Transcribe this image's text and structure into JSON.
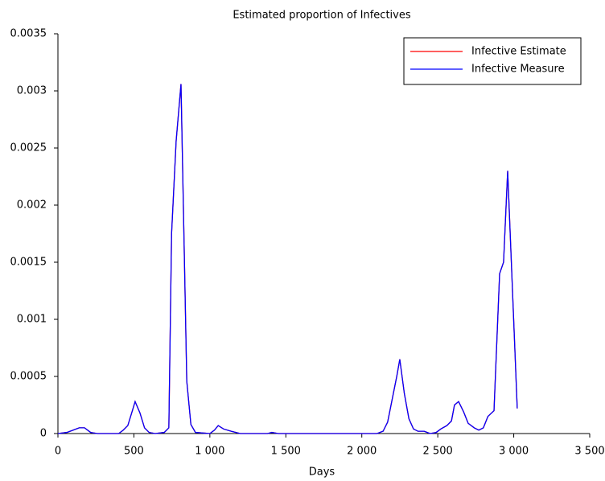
{
  "chart_data": {
    "type": "line",
    "title": "Estimated proportion of Infectives",
    "xlabel": "Days",
    "x": [
      0,
      60,
      100,
      140,
      175,
      215,
      260,
      400,
      430,
      460,
      490,
      508,
      540,
      570,
      600,
      640,
      700,
      730,
      748,
      778,
      810,
      848,
      875,
      905,
      1000,
      1030,
      1055,
      1090,
      1140,
      1200,
      1380,
      1408,
      1450,
      1600,
      1800,
      2000,
      2100,
      2140,
      2170,
      2200,
      2230,
      2250,
      2280,
      2310,
      2340,
      2370,
      2410,
      2450,
      2490,
      2520,
      2560,
      2590,
      2610,
      2637,
      2670,
      2700,
      2740,
      2770,
      2800,
      2830,
      2870,
      2907,
      2933,
      2960,
      3023
    ],
    "series": [
      {
        "name": "Infective Estimate",
        "color": "#ff0000",
        "values": [
          0,
          1e-05,
          3e-05,
          5e-05,
          5e-05,
          1e-05,
          0,
          0,
          3e-05,
          7e-05,
          0.0002,
          0.00028,
          0.00018,
          5e-05,
          1e-05,
          0,
          1e-05,
          5e-05,
          0.00175,
          0.00256,
          0.00306,
          0.00046,
          8e-05,
          1e-05,
          0,
          3e-05,
          7e-05,
          4e-05,
          2e-05,
          0,
          0,
          1e-05,
          0,
          0,
          0,
          0,
          0,
          2e-05,
          0.0001,
          0.0003,
          0.0005,
          0.00065,
          0.00035,
          0.00013,
          4e-05,
          2e-05,
          2e-05,
          0,
          1e-05,
          4e-05,
          7e-05,
          0.00011,
          0.00025,
          0.00028,
          0.00019,
          9e-05,
          5e-05,
          3e-05,
          5e-05,
          0.00015,
          0.0002,
          0.0014,
          0.0015,
          0.0023,
          0.00022
        ]
      },
      {
        "name": "Infective Measure",
        "color": "#0000ff",
        "values": [
          0,
          1e-05,
          3e-05,
          5e-05,
          5e-05,
          1e-05,
          0,
          0,
          3e-05,
          7e-05,
          0.0002,
          0.00028,
          0.00018,
          5e-05,
          1e-05,
          0,
          1e-05,
          5e-05,
          0.00175,
          0.00256,
          0.00306,
          0.00046,
          8e-05,
          1e-05,
          0,
          3e-05,
          7e-05,
          4e-05,
          2e-05,
          0,
          0,
          1e-05,
          0,
          0,
          0,
          0,
          0,
          2e-05,
          0.0001,
          0.0003,
          0.0005,
          0.00065,
          0.00035,
          0.00013,
          4e-05,
          2e-05,
          2e-05,
          0,
          1e-05,
          4e-05,
          7e-05,
          0.00011,
          0.00025,
          0.00028,
          0.00019,
          9e-05,
          5e-05,
          3e-05,
          5e-05,
          0.00015,
          0.0002,
          0.0014,
          0.0015,
          0.0023,
          0.00022
        ]
      }
    ],
    "xlim": [
      0,
      3500
    ],
    "xticks": [
      0,
      500,
      {
        "value": 1000,
        "label": "1 000"
      },
      {
        "value": 1500,
        "label": "1 500"
      },
      {
        "value": 2000,
        "label": "2 000"
      },
      {
        "value": 2500,
        "label": "2 500"
      },
      {
        "value": 3000,
        "label": "3 000"
      },
      {
        "value": 3500,
        "label": "3 500"
      }
    ],
    "ylim": [
      0,
      0.0035
    ],
    "yticks": [
      0,
      0.0005,
      0.001,
      0.0015,
      0.002,
      0.0025,
      0.003,
      0.0035
    ],
    "legend": "upper right"
  }
}
